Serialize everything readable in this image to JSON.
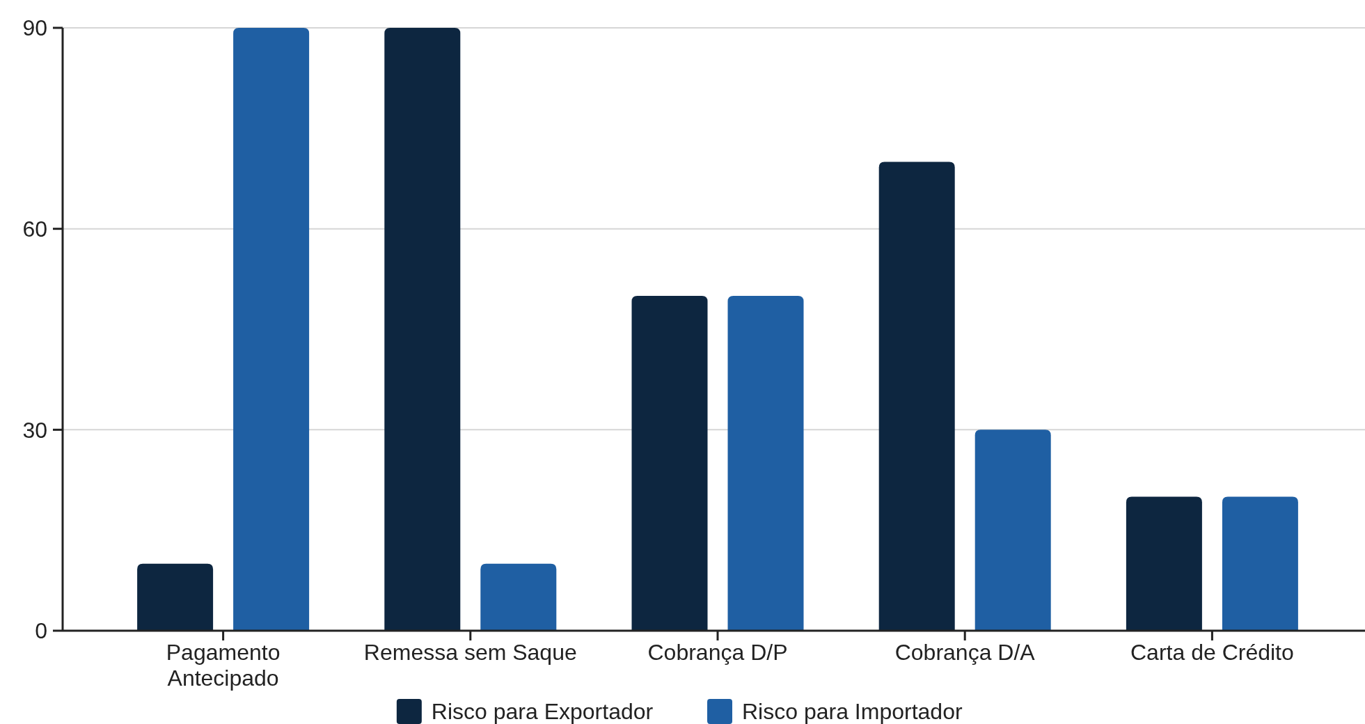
{
  "chart_data": {
    "type": "bar",
    "categories": [
      "Pagamento Antecipado",
      "Remessa sem Saque",
      "Cobrança D/P",
      "Cobrança D/A",
      "Carta de Crédito"
    ],
    "series": [
      {
        "name": "Risco para Exportador",
        "color": "#0d2640",
        "values": [
          10,
          90,
          50,
          70,
          20
        ]
      },
      {
        "name": "Risco para Importador",
        "color": "#1f5fa3",
        "values": [
          90,
          10,
          50,
          30,
          20
        ]
      }
    ],
    "ylim": [
      0,
      90
    ],
    "yticks": [
      0,
      30,
      60,
      90
    ],
    "grid": "y",
    "legend": "bottom"
  }
}
